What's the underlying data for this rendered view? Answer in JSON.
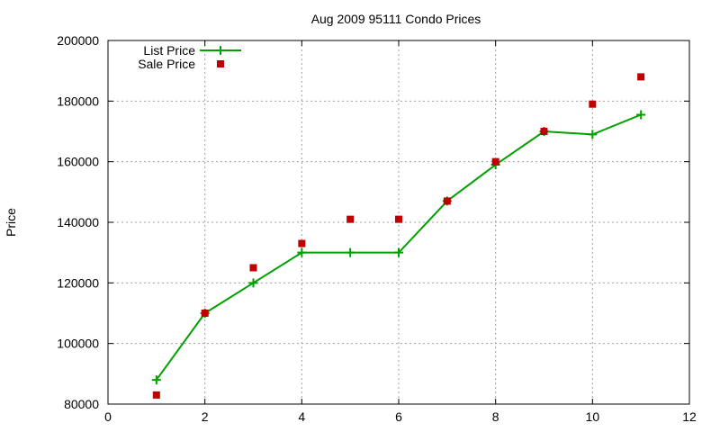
{
  "chart_data": {
    "type": "line",
    "title": "Aug 2009 95111 Condo Prices",
    "xlabel": "",
    "ylabel": "Price",
    "xlim": [
      0,
      12
    ],
    "ylim": [
      80000,
      200000
    ],
    "xticks": [
      0,
      2,
      4,
      6,
      8,
      10,
      12
    ],
    "yticks": [
      80000,
      100000,
      120000,
      140000,
      160000,
      180000,
      200000
    ],
    "grid": true,
    "legend_position": "top-left",
    "series": [
      {
        "name": "List Price",
        "style": "line with plus markers",
        "color": "#00a000",
        "x": [
          1,
          2,
          3,
          4,
          5,
          6,
          7,
          8,
          9,
          10,
          11
        ],
        "y": [
          88000,
          110000,
          120000,
          130000,
          130000,
          130000,
          147000,
          159000,
          170000,
          169000,
          175500
        ]
      },
      {
        "name": "Sale Price",
        "style": "square markers",
        "color": "#c00000",
        "x": [
          1,
          2,
          3,
          4,
          5,
          6,
          7,
          8,
          9,
          10,
          11
        ],
        "y": [
          83000,
          110000,
          125000,
          133000,
          141000,
          141000,
          147000,
          160000,
          170000,
          179000,
          188000
        ]
      }
    ]
  }
}
